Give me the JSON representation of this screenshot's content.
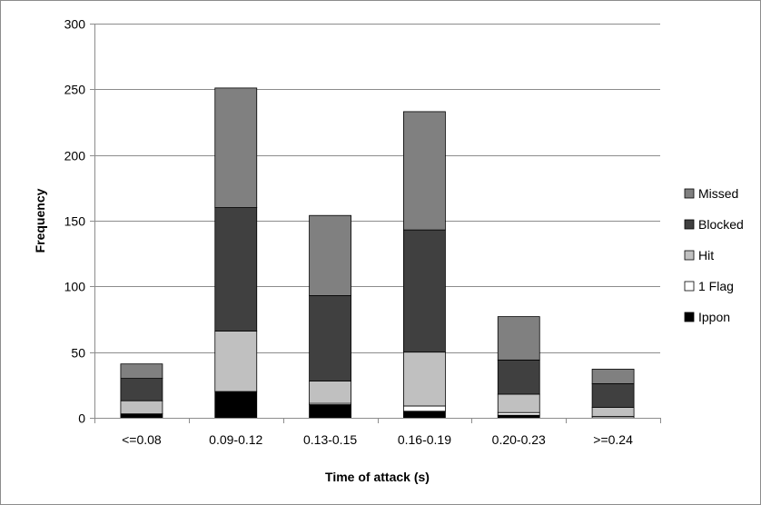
{
  "chart_data": {
    "type": "bar",
    "stacked": true,
    "title": "",
    "xlabel": "Time of attack (s)",
    "ylabel": "Frequency",
    "ylim": [
      0,
      300
    ],
    "yticks": [
      0,
      50,
      100,
      150,
      200,
      250,
      300
    ],
    "grid": true,
    "legend_position": "right",
    "categories": [
      "<=0.08",
      "0.09-0.12",
      "0.13-0.15",
      "0.16-0.19",
      "0.20-0.23",
      ">=0.24"
    ],
    "series": [
      {
        "name": "Ippon",
        "color": "#000000",
        "values": [
          3,
          20,
          10,
          5,
          2,
          0
        ]
      },
      {
        "name": "1 Flag",
        "color": "#ffffff",
        "values": [
          0,
          0,
          1,
          4,
          2,
          1
        ]
      },
      {
        "name": "Hit",
        "color": "#c0c0c0",
        "values": [
          10,
          46,
          17,
          41,
          14,
          7
        ]
      },
      {
        "name": "Blocked",
        "color": "#404040",
        "values": [
          17,
          94,
          65,
          93,
          26,
          18
        ]
      },
      {
        "name": "Missed",
        "color": "#808080",
        "values": [
          11,
          91,
          61,
          90,
          33,
          11
        ]
      }
    ],
    "legend_order": [
      "Missed",
      "Blocked",
      "Hit",
      "1 Flag",
      "Ippon"
    ]
  }
}
